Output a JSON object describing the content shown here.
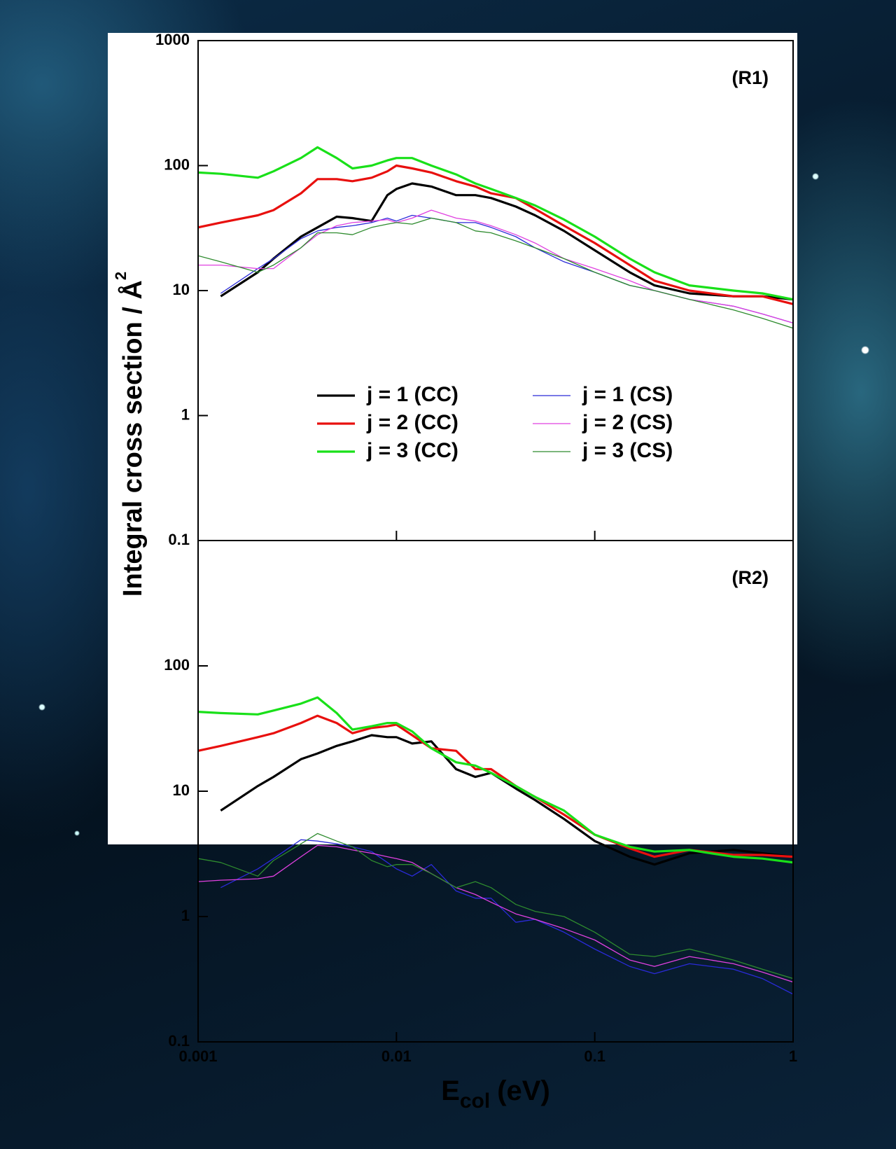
{
  "chart_data": [
    {
      "type": "line",
      "annotation": "(R1)",
      "log_x": true,
      "log_y": true,
      "legend": "center",
      "ylabel": {
        "text": "Integral cross section / Å",
        "sup": "2"
      },
      "xlim": [
        0.001,
        1
      ],
      "xticks": [
        0.001,
        0.01,
        0.1,
        1
      ],
      "ylim": [
        0.1,
        1000
      ],
      "yticks": [
        0.1,
        1,
        10,
        100,
        1000
      ],
      "x": [
        0.001,
        0.0013,
        0.002,
        0.0024,
        0.0033,
        0.004,
        0.005,
        0.006,
        0.0075,
        0.009,
        0.01,
        0.012,
        0.015,
        0.02,
        0.025,
        0.03,
        0.04,
        0.05,
        0.07,
        0.1,
        0.15,
        0.2,
        0.3,
        0.5,
        0.7,
        1
      ],
      "series": [
        {
          "name": "j = 1 (CC)",
          "color": "#000000",
          "values": [
            null,
            9,
            14,
            18,
            27,
            32,
            39,
            38,
            36,
            58,
            65,
            72,
            68,
            58,
            58,
            55,
            47,
            40,
            30,
            21,
            14,
            11,
            9.5,
            9,
            9,
            8.5
          ]
        },
        {
          "name": "j = 2 (CC)",
          "color": "#e8100e",
          "values": [
            32,
            35,
            40,
            44,
            60,
            78,
            78,
            75,
            80,
            90,
            100,
            95,
            88,
            75,
            68,
            60,
            55,
            45,
            33,
            24,
            16,
            12,
            10,
            9,
            9,
            7.8
          ]
        },
        {
          "name": "j = 3 (CC)",
          "color": "#19e019",
          "values": [
            88,
            86,
            80,
            90,
            115,
            140,
            115,
            95,
            100,
            110,
            115,
            115,
            100,
            85,
            72,
            65,
            55,
            48,
            37,
            27,
            18,
            14,
            11,
            10,
            9.5,
            8.5
          ]
        },
        {
          "name": "j = 1 (CS)",
          "color": "#2a2ad8",
          "values": [
            null,
            9.5,
            15,
            18,
            26,
            30,
            32,
            33,
            35,
            38,
            36,
            40,
            38,
            35,
            35,
            32,
            27,
            22,
            17,
            14,
            11,
            10,
            8.5,
            7.5,
            6.5,
            5.5
          ]
        },
        {
          "name": "j = 2 (CS)",
          "color": "#e040e0",
          "values": [
            16,
            16,
            15,
            15,
            22,
            28,
            33,
            35,
            36,
            37,
            35,
            38,
            44,
            38,
            36,
            33,
            28,
            24,
            18,
            15,
            12,
            10,
            8.5,
            7.5,
            6.5,
            5.5
          ]
        },
        {
          "name": "j = 3 (CS)",
          "color": "#2e8b2e",
          "values": [
            19,
            17,
            14,
            16,
            22,
            29,
            29,
            28,
            32,
            34,
            35,
            34,
            38,
            35,
            30,
            29,
            25,
            22,
            18,
            14,
            11,
            10,
            8.5,
            7,
            6,
            5
          ]
        }
      ]
    },
    {
      "type": "line",
      "annotation": "(R2)",
      "log_x": true,
      "log_y": true,
      "xlabel": {
        "text": "E",
        "sub": "col",
        "unit": "(eV)"
      },
      "xlim": [
        0.001,
        1
      ],
      "xticks": [
        0.001,
        0.01,
        0.1,
        1
      ],
      "ylim": [
        0.1,
        1000
      ],
      "yticks": [
        0.1,
        1,
        10,
        100
      ],
      "x": [
        0.001,
        0.0013,
        0.002,
        0.0024,
        0.0033,
        0.004,
        0.005,
        0.006,
        0.0075,
        0.009,
        0.01,
        0.012,
        0.015,
        0.02,
        0.025,
        0.03,
        0.04,
        0.05,
        0.07,
        0.1,
        0.15,
        0.2,
        0.3,
        0.5,
        0.7,
        1
      ],
      "series": [
        {
          "color": "#000000",
          "values": [
            null,
            7,
            11,
            13,
            18,
            20,
            23,
            25,
            28,
            27,
            27,
            24,
            25,
            15,
            13,
            14,
            10.5,
            8.5,
            6,
            4,
            3,
            2.6,
            3.2,
            3.4,
            3.2,
            3
          ]
        },
        {
          "color": "#e8100e",
          "values": [
            21,
            23,
            27,
            29,
            35,
            40,
            35,
            29,
            32,
            33,
            34,
            28,
            22,
            21,
            15,
            15,
            11,
            9,
            6.5,
            4.5,
            3.5,
            3,
            3.4,
            3.1,
            3.1,
            3
          ]
        },
        {
          "color": "#19e019",
          "values": [
            43,
            42,
            41,
            44,
            50,
            56,
            42,
            31,
            33,
            35,
            35,
            30,
            22,
            17,
            16,
            14,
            11,
            9,
            7,
            4.5,
            3.6,
            3.3,
            3.4,
            3,
            2.9,
            2.7
          ]
        },
        {
          "color": "#2a2ad8",
          "values": [
            null,
            1.7,
            2.4,
            2.9,
            4.1,
            4,
            3.8,
            3.6,
            3.3,
            2.7,
            2.4,
            2.1,
            2.6,
            1.6,
            1.4,
            1.4,
            0.9,
            0.95,
            0.75,
            0.55,
            0.4,
            0.35,
            0.42,
            0.38,
            0.32,
            0.24
          ]
        },
        {
          "color": "#e040e0",
          "values": [
            1.9,
            1.95,
            2,
            2.1,
            3,
            3.7,
            3.6,
            3.4,
            3.2,
            3,
            2.9,
            2.7,
            2.2,
            1.7,
            1.5,
            1.3,
            1.05,
            0.95,
            0.8,
            0.65,
            0.45,
            0.4,
            0.48,
            0.42,
            0.36,
            0.3
          ]
        },
        {
          "color": "#2e8b2e",
          "values": [
            2.9,
            2.7,
            2.1,
            2.8,
            3.8,
            4.6,
            4,
            3.6,
            2.8,
            2.5,
            2.6,
            2.6,
            2.2,
            1.7,
            1.9,
            1.7,
            1.25,
            1.1,
            1.0,
            0.75,
            0.5,
            0.48,
            0.55,
            0.45,
            0.38,
            0.32
          ]
        }
      ]
    }
  ]
}
